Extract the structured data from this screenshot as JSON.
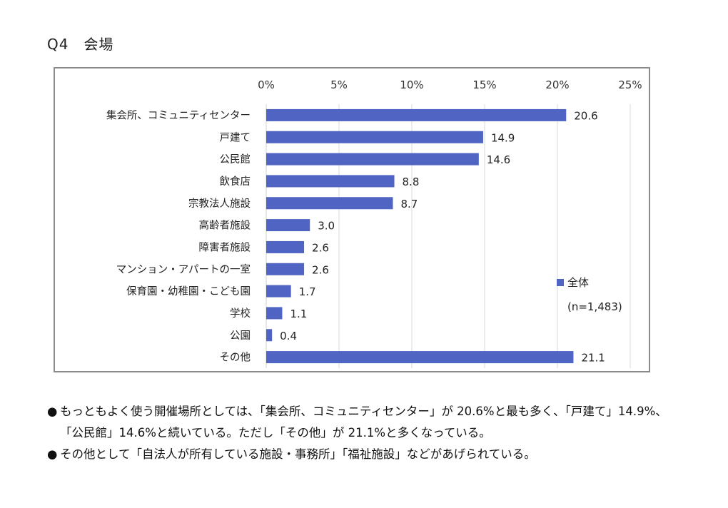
{
  "page": {
    "title": "Q4　会場"
  },
  "chart_data": {
    "type": "bar",
    "orientation": "horizontal",
    "title": "",
    "xlabel": "",
    "ylabel": "",
    "xlim": [
      0,
      25
    ],
    "x_ticks": [
      0,
      5,
      10,
      15,
      20,
      25
    ],
    "x_tick_labels": [
      "0%",
      "5%",
      "10%",
      "15%",
      "20%",
      "25%"
    ],
    "grid": true,
    "categories": [
      "集会所、コミュニティセンター",
      "戸建て",
      "公民館",
      "飲食店",
      "宗教法人施設",
      "高齢者施設",
      "障害者施設",
      "マンション・アパートの一室",
      "保育園・幼稚園・こども園",
      "学校",
      "公園",
      "その他"
    ],
    "series": [
      {
        "name": "全体",
        "color": "#5064C4",
        "values": [
          20.6,
          14.9,
          14.6,
          8.8,
          8.7,
          3.0,
          2.6,
          2.6,
          1.7,
          1.1,
          0.4,
          21.1
        ],
        "value_labels": [
          "20.6",
          "14.9",
          "14.6",
          "8.8",
          "8.7",
          "3.0",
          "2.6",
          "2.6",
          "1.7",
          "1.1",
          "0.4",
          "21.1"
        ]
      }
    ],
    "legend": {
      "position": "right",
      "entries": [
        "全体"
      ],
      "note": "(n=1,483)"
    }
  },
  "notes": [
    {
      "bullet": "●",
      "text": "もっともよく使う開催場所としては、「集会所、コミュニティセンター」が 20.6%と最も多く、「戸建て」14.9%、「公民館」14.6%と続いている。ただし「その他」が 21.1%と多くなっている。"
    },
    {
      "bullet": "●",
      "text": "その他として「自法人が所有している施設・事務所」「福祉施設」などがあげられている。"
    }
  ]
}
